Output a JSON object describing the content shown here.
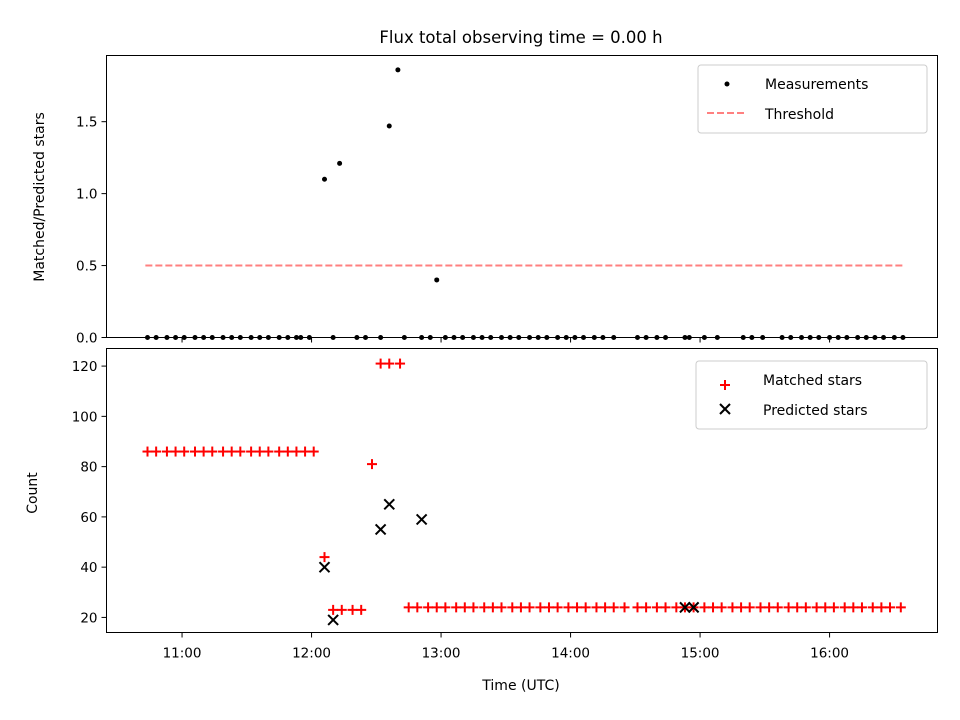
{
  "title": "Flux total observing time = 0.00 h",
  "xlabel": "Time (UTC)",
  "colors": {
    "matched": "#ff0000",
    "predicted": "#000000",
    "threshold": "#ff8080",
    "measurement": "#000000"
  },
  "chart_data": [
    {
      "type": "scatter",
      "ylabel": "Matched/Predicted stars",
      "xlim": [
        "10:25",
        "16:50"
      ],
      "ylim": [
        0,
        1.96
      ],
      "yticks": [
        0.0,
        0.5,
        1.0,
        1.5
      ],
      "legend": {
        "placement": "top-right",
        "entries": [
          "Measurements",
          "Threshold"
        ]
      },
      "threshold": {
        "name": "Threshold",
        "y": 0.5,
        "x": [
          "10:43",
          "16:35"
        ]
      },
      "series": [
        {
          "name": "Measurements",
          "x": [
            "10:44",
            "10:48",
            "10:53",
            "10:57",
            "11:01",
            "11:06",
            "11:10",
            "11:14",
            "11:19",
            "11:23",
            "11:27",
            "11:32",
            "11:36",
            "11:40",
            "11:45",
            "11:49",
            "11:53",
            "11:55",
            "11:59",
            "12:06",
            "12:10",
            "12:13",
            "12:21",
            "12:25",
            "12:32",
            "12:36",
            "12:40",
            "12:43",
            "12:51",
            "12:55",
            "12:58",
            "13:02",
            "13:06",
            "13:10",
            "13:15",
            "13:19",
            "13:23",
            "13:28",
            "13:32",
            "13:36",
            "13:41",
            "13:45",
            "13:49",
            "13:54",
            "13:58",
            "14:02",
            "14:06",
            "14:11",
            "14:15",
            "14:20",
            "14:31",
            "14:35",
            "14:40",
            "14:44",
            "14:53",
            "14:55",
            "15:02",
            "15:08",
            "15:20",
            "15:24",
            "15:29",
            "15:38",
            "15:42",
            "15:47",
            "15:51",
            "15:55",
            "16:00",
            "16:04",
            "16:08",
            "16:13",
            "16:17",
            "16:21",
            "16:25",
            "16:30",
            "16:34"
          ],
          "y": [
            0,
            0,
            0,
            0,
            0,
            0,
            0,
            0,
            0,
            0,
            0,
            0,
            0,
            0,
            0,
            0,
            0,
            0,
            0,
            1.1,
            0,
            1.21,
            0,
            0,
            0,
            1.47,
            1.86,
            0,
            0,
            0,
            0.4,
            0,
            0,
            0,
            0,
            0,
            0,
            0,
            0,
            0,
            0,
            0,
            0,
            0,
            0,
            0,
            0,
            0,
            0,
            0,
            0,
            0,
            0,
            0,
            0,
            0,
            0,
            0,
            0,
            0,
            0,
            0,
            0,
            0,
            0,
            0,
            0,
            0,
            0,
            0,
            0,
            0,
            0,
            0,
            0
          ]
        }
      ]
    },
    {
      "type": "scatter",
      "ylabel": "Count",
      "xlim": [
        "10:25",
        "16:50"
      ],
      "ylim": [
        14,
        127
      ],
      "yticks": [
        20,
        40,
        60,
        80,
        100,
        120
      ],
      "xticks": [
        "11:00",
        "12:00",
        "13:00",
        "14:00",
        "15:00",
        "16:00"
      ],
      "legend": {
        "placement": "top-right",
        "entries": [
          "Matched stars",
          "Predicted stars"
        ]
      },
      "series": [
        {
          "name": "Matched stars",
          "x": [
            "10:44",
            "10:48",
            "10:53",
            "10:57",
            "11:01",
            "11:06",
            "11:10",
            "11:14",
            "11:19",
            "11:23",
            "11:27",
            "11:32",
            "11:36",
            "11:40",
            "11:45",
            "11:49",
            "11:53",
            "11:57",
            "12:01",
            "12:06",
            "12:10",
            "12:14",
            "12:19",
            "12:23",
            "12:28",
            "12:32",
            "12:36",
            "12:41",
            "12:45",
            "12:49",
            "12:54",
            "12:58",
            "13:02",
            "13:07",
            "13:11",
            "13:15",
            "13:20",
            "13:24",
            "13:28",
            "13:33",
            "13:37",
            "13:41",
            "13:46",
            "13:50",
            "13:54",
            "13:59",
            "14:03",
            "14:07",
            "14:12",
            "14:16",
            "14:20",
            "14:25",
            "14:31",
            "14:35",
            "14:40",
            "14:44",
            "14:49",
            "14:53",
            "14:57",
            "15:02",
            "15:06",
            "15:10",
            "15:15",
            "15:19",
            "15:23",
            "15:28",
            "15:32",
            "15:36",
            "15:41",
            "15:45",
            "15:49",
            "15:54",
            "15:58",
            "16:02",
            "16:07",
            "16:11",
            "16:15",
            "16:20",
            "16:24",
            "16:28",
            "16:33"
          ],
          "y": [
            86,
            86,
            86,
            86,
            86,
            86,
            86,
            86,
            86,
            86,
            86,
            86,
            86,
            86,
            86,
            86,
            86,
            86,
            86,
            44,
            23,
            23,
            23,
            23,
            81,
            121,
            121,
            121,
            24,
            24,
            24,
            24,
            24,
            24,
            24,
            24,
            24,
            24,
            24,
            24,
            24,
            24,
            24,
            24,
            24,
            24,
            24,
            24,
            24,
            24,
            24,
            24,
            24,
            24,
            24,
            24,
            24,
            24,
            24,
            24,
            24,
            24,
            24,
            24,
            24,
            24,
            24,
            24,
            24,
            24,
            24,
            24,
            24,
            24,
            24,
            24,
            24,
            24,
            24,
            24,
            24
          ]
        },
        {
          "name": "Predicted stars",
          "x": [
            "12:06",
            "12:10",
            "12:32",
            "12:36",
            "12:51",
            "14:53",
            "14:57"
          ],
          "y": [
            40,
            19,
            55,
            65,
            59,
            24,
            24
          ]
        }
      ]
    }
  ]
}
